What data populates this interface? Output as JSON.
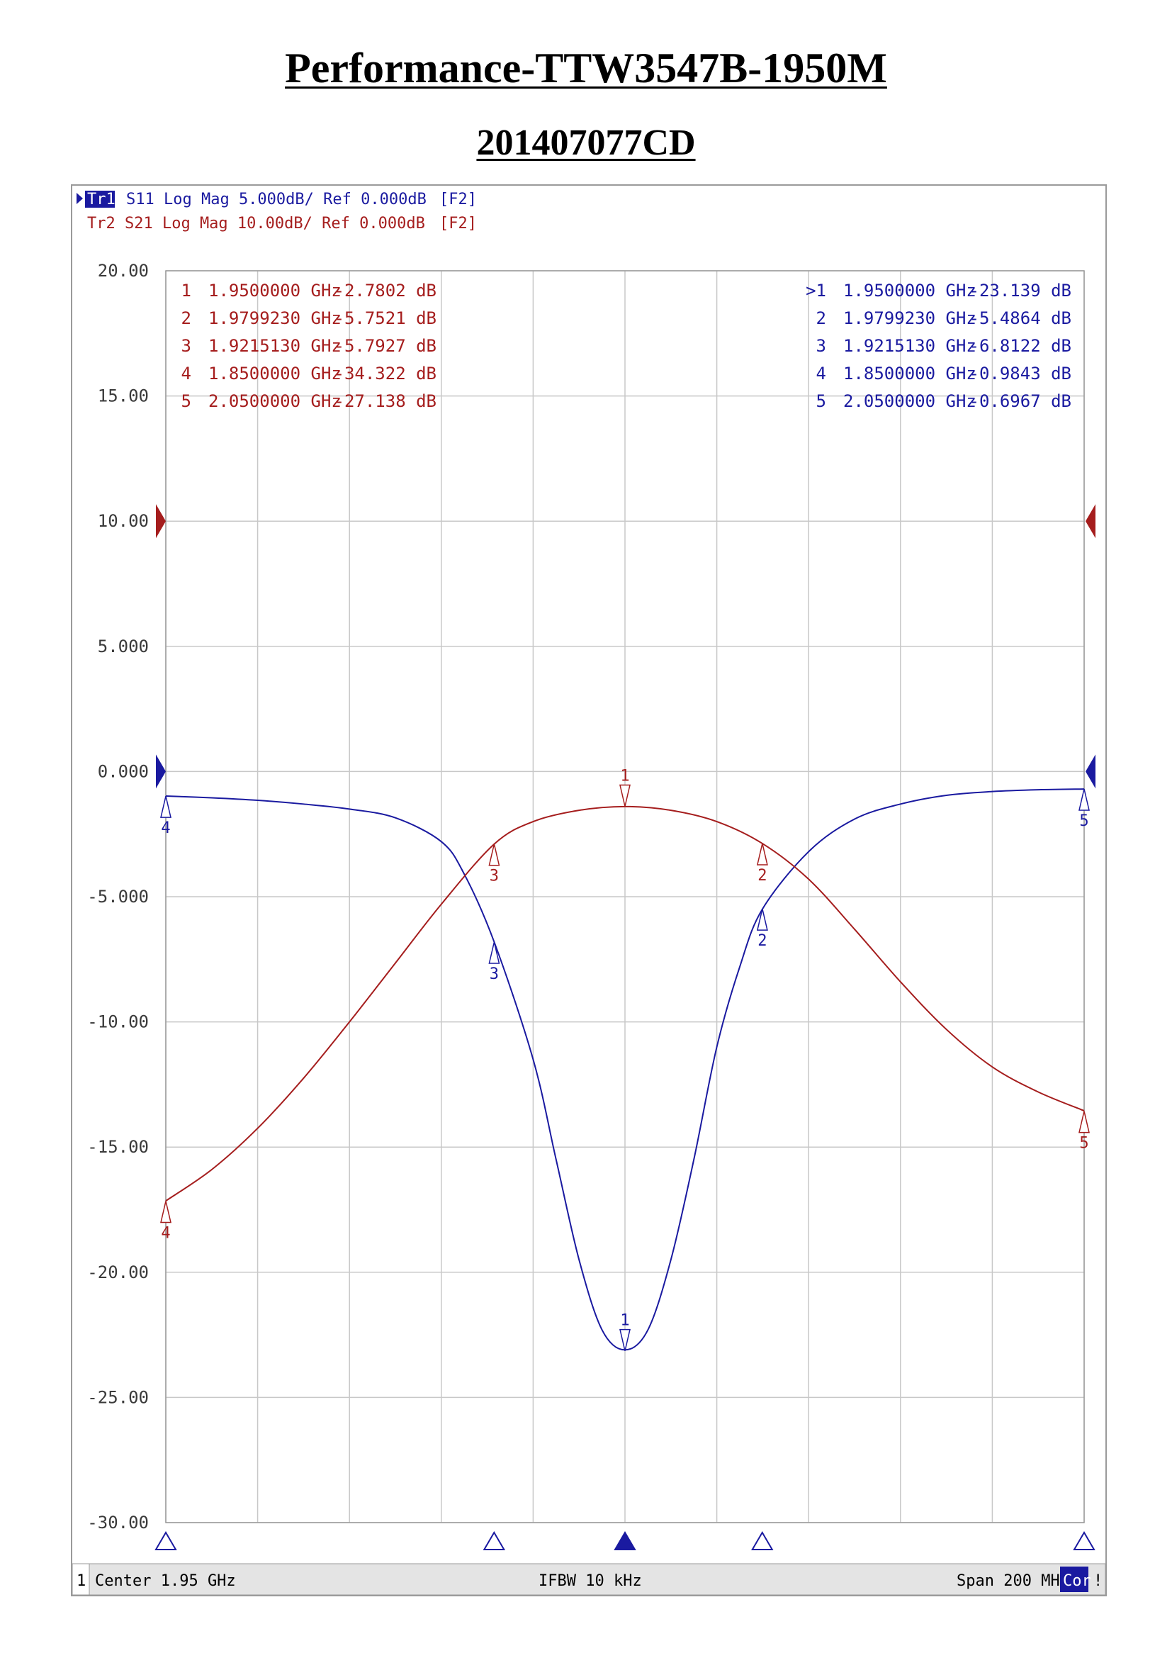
{
  "title": "Performance-TTW3547B-1950M",
  "subtitle": "201407077CD",
  "colors": {
    "s11": "#1a1aa0",
    "s21": "#a51d1d",
    "grid": "#c8c8c8",
    "axis_text": "#3a3a3a"
  },
  "header": {
    "tr1_badge": "Tr1",
    "tr1_text": "S11 Log Mag 5.000dB/ Ref 0.000dB",
    "tr1_flag": "[F2]",
    "tr2_text": "Tr2 S21 Log Mag 10.00dB/ Ref 0.000dB",
    "tr2_flag": "[F2]"
  },
  "footer": {
    "channel": "1",
    "center": "Center 1.95 GHz",
    "ifbw": "IFBW 10 kHz",
    "span": "Span 200 MHz",
    "cor": "Cor",
    "bang": "!"
  },
  "chart_data": {
    "type": "line",
    "xlim": [
      1.85,
      2.05
    ],
    "ylim": [
      -30,
      20
    ],
    "y_ticks": [
      "20.00",
      "15.00",
      "10.00",
      "5.000",
      "0.000",
      "-5.000",
      "-10.00",
      "-15.00",
      "-20.00",
      "-25.00",
      "-30.00"
    ],
    "y_tick_values": [
      20,
      15,
      10,
      5,
      0,
      -5,
      -10,
      -15,
      -20,
      -25,
      -30
    ],
    "x_divisions": 10,
    "series": [
      {
        "name": "S11",
        "trace_scale": 1,
        "x": [
          1.85,
          1.86,
          1.87,
          1.88,
          1.89,
          1.9,
          1.91,
          1.915,
          1.9215,
          1.93,
          1.935,
          1.94,
          1.945,
          1.95,
          1.955,
          1.96,
          1.965,
          1.97,
          1.975,
          1.97992,
          1.99,
          2.0,
          2.01,
          2.02,
          2.03,
          2.04,
          2.05
        ],
        "y": [
          -0.98,
          -1.05,
          -1.15,
          -1.3,
          -1.5,
          -1.85,
          -2.8,
          -4.1,
          -6.8,
          -11.5,
          -15.5,
          -19.5,
          -22.3,
          -23.1,
          -22.3,
          -19.5,
          -15.5,
          -11.0,
          -7.8,
          -5.5,
          -3.2,
          -1.9,
          -1.3,
          -0.95,
          -0.8,
          -0.73,
          -0.7
        ]
      },
      {
        "name": "S21",
        "trace_scale": 2,
        "x": [
          1.85,
          1.86,
          1.87,
          1.88,
          1.89,
          1.9,
          1.91,
          1.9215,
          1.93,
          1.94,
          1.95,
          1.96,
          1.97,
          1.97992,
          1.99,
          2.0,
          2.01,
          2.02,
          2.03,
          2.04,
          2.05
        ],
        "y": [
          -34.3,
          -31.8,
          -28.5,
          -24.5,
          -20.0,
          -15.3,
          -10.6,
          -5.8,
          -4.0,
          -3.1,
          -2.8,
          -3.1,
          -4.0,
          -5.75,
          -8.6,
          -12.6,
          -16.8,
          -20.6,
          -23.6,
          -25.6,
          -27.1
        ]
      }
    ],
    "s21_markers": [
      {
        "id": "1",
        "freq": "1.9500000 GHz",
        "value": "-2.7802 dB",
        "x": 1.95,
        "y": -2.7802
      },
      {
        "id": "2",
        "freq": "1.9799230 GHz",
        "value": "-5.7521 dB",
        "x": 1.979923,
        "y": -5.7521
      },
      {
        "id": "3",
        "freq": "1.9215130 GHz",
        "value": "-5.7927 dB",
        "x": 1.921513,
        "y": -5.7927
      },
      {
        "id": "4",
        "freq": "1.8500000 GHz",
        "value": "-34.322 dB",
        "x": 1.85,
        "y": -34.322
      },
      {
        "id": "5",
        "freq": "2.0500000 GHz",
        "value": "-27.138 dB",
        "x": 2.05,
        "y": -27.138
      }
    ],
    "s11_markers": [
      {
        "id": ">1",
        "freq": "1.9500000 GHz",
        "value": "-23.139 dB",
        "x": 1.95,
        "y": -23.139
      },
      {
        "id": "2",
        "freq": "1.9799230 GHz",
        "value": "-5.4864 dB",
        "x": 1.979923,
        "y": -5.4864
      },
      {
        "id": "3",
        "freq": "1.9215130 GHz",
        "value": "-6.8122 dB",
        "x": 1.921513,
        "y": -6.8122
      },
      {
        "id": "4",
        "freq": "1.8500000 GHz",
        "value": "-0.9843 dB",
        "x": 1.85,
        "y": -0.9843
      },
      {
        "id": "5",
        "freq": "2.0500000 GHz",
        "value": "-0.6967 dB",
        "x": 2.05,
        "y": -0.6967
      }
    ],
    "bottom_marker_freqs": [
      1.85,
      1.9215,
      1.95,
      1.9799,
      2.05
    ],
    "active_bottom_marker": 1.95
  }
}
